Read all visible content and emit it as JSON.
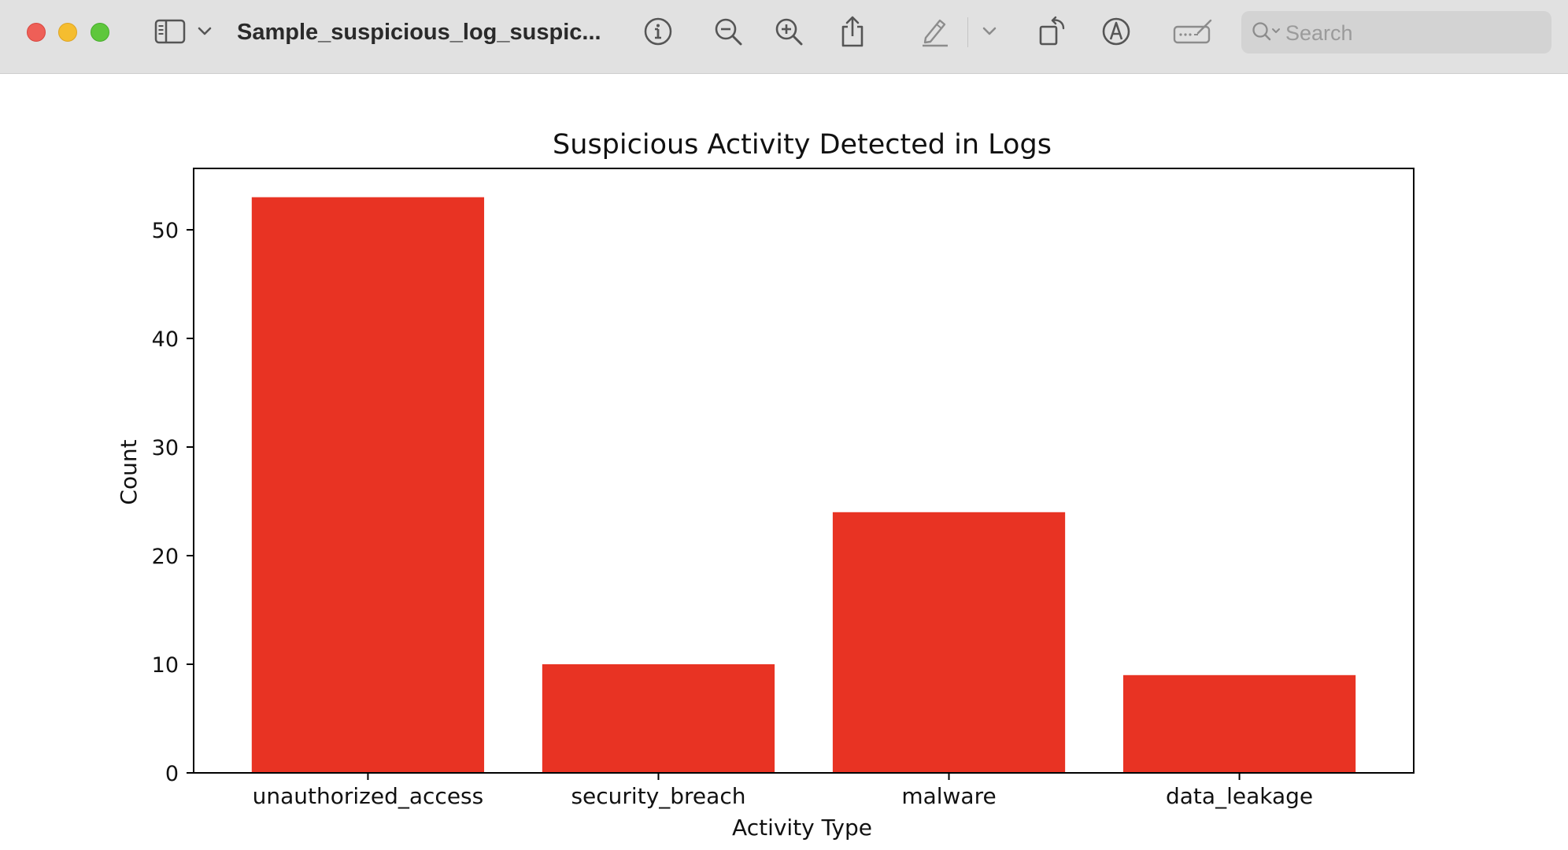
{
  "window": {
    "title": "Sample_suspicious_log_suspic...",
    "search_placeholder": "Search"
  },
  "toolbar": {
    "icons": [
      "sidebar-toggle-icon",
      "chevron-down-icon",
      "info-icon",
      "zoom-out-icon",
      "zoom-in-icon",
      "share-icon",
      "highlight-pen-icon",
      "chevron-down-icon",
      "rotate-icon",
      "markup-icon",
      "signature-icon",
      "search-icon"
    ]
  },
  "chart_data": {
    "type": "bar",
    "title": "Suspicious Activity Detected in Logs",
    "xlabel": "Activity Type",
    "ylabel": "Count",
    "categories": [
      "unauthorized_access",
      "security_breach",
      "malware",
      "data_leakage"
    ],
    "values": [
      53,
      10,
      24,
      9
    ],
    "ylim": [
      0,
      55.65
    ],
    "yticks": [
      0,
      10,
      20,
      30,
      40,
      50
    ],
    "bar_color": "#e83323",
    "grid": false,
    "legend": "none"
  }
}
